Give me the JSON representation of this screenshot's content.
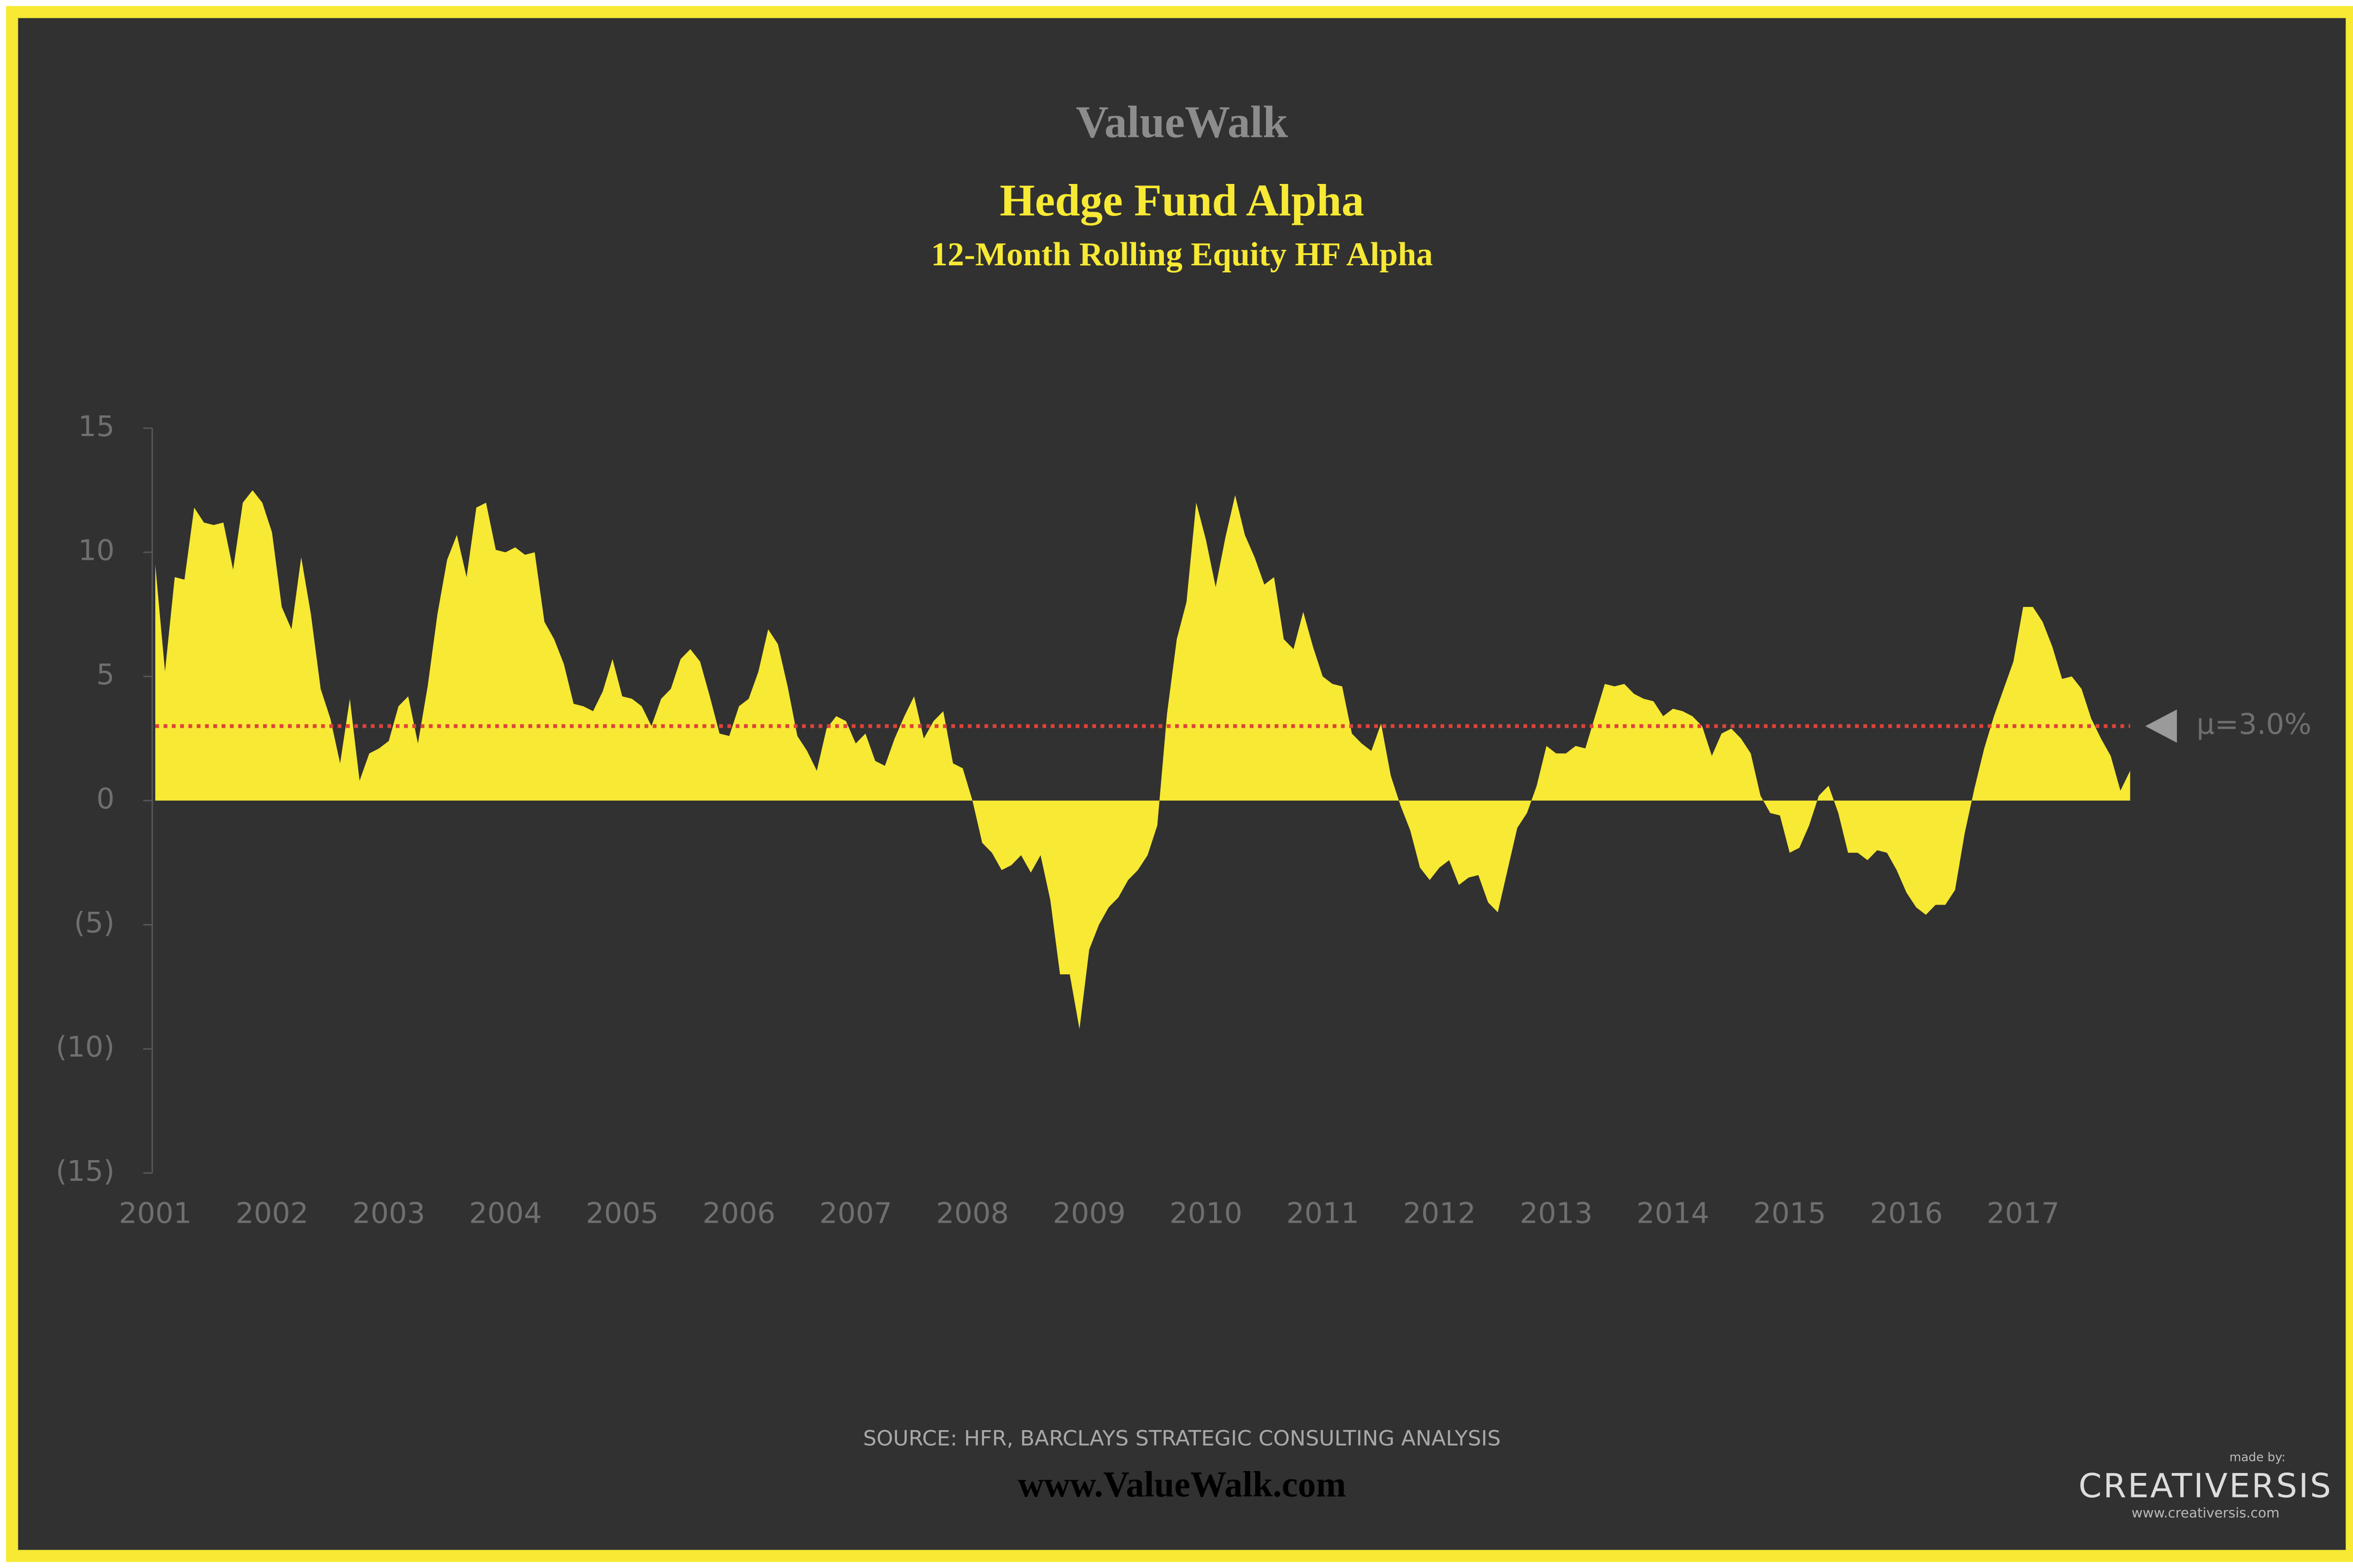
{
  "brand": "ValueWalk",
  "chart_data": {
    "type": "area",
    "title": "Hedge Fund Alpha",
    "subtitle": "12-Month Rolling Equity HF Alpha",
    "color": "#f7e934",
    "categories": [
      "2001",
      null,
      null,
      null,
      null,
      null,
      null,
      null,
      null,
      null,
      null,
      null,
      "2002",
      null,
      null,
      null,
      null,
      null,
      null,
      null,
      null,
      null,
      null,
      null,
      "2003",
      null,
      null,
      null,
      null,
      null,
      null,
      null,
      null,
      null,
      null,
      null,
      "2004",
      null,
      null,
      null,
      null,
      null,
      null,
      null,
      null,
      null,
      null,
      null,
      "2005",
      null,
      null,
      null,
      null,
      null,
      null,
      null,
      null,
      null,
      null,
      null,
      "2006",
      null,
      null,
      null,
      null,
      null,
      null,
      null,
      null,
      null,
      null,
      null,
      "2007",
      null,
      null,
      null,
      null,
      null,
      null,
      null,
      null,
      null,
      null,
      null,
      "2008",
      null,
      null,
      null,
      null,
      null,
      null,
      null,
      null,
      null,
      null,
      null,
      "2009",
      null,
      null,
      null,
      null,
      null,
      null,
      null,
      null,
      null,
      null,
      null,
      "2010",
      null,
      null,
      null,
      null,
      null,
      null,
      null,
      null,
      null,
      null,
      null,
      "2011",
      null,
      null,
      null,
      null,
      null,
      null,
      null,
      null,
      null,
      null,
      null,
      "2012",
      null,
      null,
      null,
      null,
      null,
      null,
      null,
      null,
      null,
      null,
      null,
      "2013",
      null,
      null,
      null,
      null,
      null,
      null,
      null,
      null,
      null,
      null,
      null,
      "2014",
      null,
      null,
      null,
      null,
      null,
      null,
      null,
      null,
      null,
      null,
      null,
      "2015",
      null,
      null,
      null,
      null,
      null,
      null,
      null,
      null,
      null,
      null,
      null,
      "2016",
      null,
      null,
      null,
      null,
      null,
      null,
      null,
      null,
      null,
      null,
      null,
      "2017",
      null,
      null,
      null,
      null,
      null,
      null,
      null,
      null,
      null,
      null,
      null
    ],
    "values": [
      9.5,
      5.2,
      9,
      8.9,
      11.8,
      11.2,
      11.1,
      11.2,
      9.3,
      12,
      12.5,
      12,
      10.8,
      7.8,
      6.9,
      9.8,
      7.5,
      4.5,
      3.3,
      1.5,
      4.1,
      0.8,
      1.9,
      2.1,
      2.4,
      3.8,
      4.2,
      2.3,
      4.6,
      7.5,
      9.7,
      10.7,
      9,
      11.8,
      12,
      10.1,
      10,
      10.2,
      9.9,
      10,
      7.2,
      6.5,
      5.5,
      3.9,
      3.8,
      3.6,
      4.4,
      5.7,
      4.2,
      4.1,
      3.8,
      3,
      4.1,
      4.5,
      5.7,
      6.1,
      5.6,
      4.2,
      2.7,
      2.6,
      3.8,
      4.1,
      5.2,
      6.9,
      6.3,
      4.6,
      2.6,
      2,
      1.2,
      2.9,
      3.4,
      3.2,
      2.3,
      2.7,
      1.6,
      1.4,
      2.5,
      3.4,
      4.2,
      2.5,
      3.2,
      3.6,
      1.5,
      1.3,
      0,
      -1.7,
      -2.1,
      -2.8,
      -2.6,
      -2.2,
      -2.9,
      -2.2,
      -4,
      -7,
      -7,
      -9.2,
      -6,
      -5,
      -4.3,
      -3.9,
      -3.2,
      -2.8,
      -2.2,
      -1,
      3.5,
      6.5,
      8,
      12,
      10.5,
      8.6,
      10.6,
      12.3,
      10.7,
      9.8,
      8.7,
      9,
      6.5,
      6.1,
      7.6,
      6.2,
      5,
      4.7,
      4.6,
      2.7,
      2.3,
      2,
      3.1,
      1,
      -0.2,
      -1.2,
      -2.7,
      -3.2,
      -2.7,
      -2.4,
      -3.4,
      -3.1,
      -3,
      -4.1,
      -4.5,
      -2.8,
      -1.1,
      -0.5,
      0.6,
      2.2,
      1.9,
      1.9,
      2.2,
      2.1,
      3.4,
      4.7,
      4.6,
      4.7,
      4.3,
      4.1,
      4,
      3.4,
      3.7,
      3.6,
      3.4,
      3,
      1.8,
      2.7,
      2.9,
      2.5,
      1.9,
      0.2,
      -0.5,
      -0.6,
      -2.1,
      -1.9,
      -1,
      0.2,
      0.6,
      -0.5,
      -2.1,
      -2.1,
      -2.4,
      -2,
      -2.1,
      -2.8,
      -3.7,
      -4.3,
      -4.6,
      -4.2,
      -4.2,
      -3.6,
      -1.3,
      0.5,
      2.1,
      3.4,
      4.5,
      5.6,
      7.8,
      7.8,
      7.2,
      6.2,
      4.9,
      5,
      4.5,
      3.3,
      2.5,
      1.8,
      0.4,
      1.2
    ],
    "ylim": [
      -15,
      15
    ],
    "yticks": [
      {
        "value": -15,
        "label": "(15)"
      },
      {
        "value": -10,
        "label": "(10)"
      },
      {
        "value": -5,
        "label": "(5)"
      },
      0,
      5,
      10,
      15
    ],
    "grid": false,
    "mean": {
      "value": 3,
      "label": "µ=3.0%"
    },
    "mean_color": "#e0413a",
    "source": "SOURCE: HFR, BARCLAYS STRATEGIC CONSULTING ANALYSIS"
  },
  "footer": {
    "url": "www.ValueWalk.com",
    "made_by": "made by:",
    "logo": "CREATIVERSIS",
    "logo_url": "www.creativersis.com"
  }
}
